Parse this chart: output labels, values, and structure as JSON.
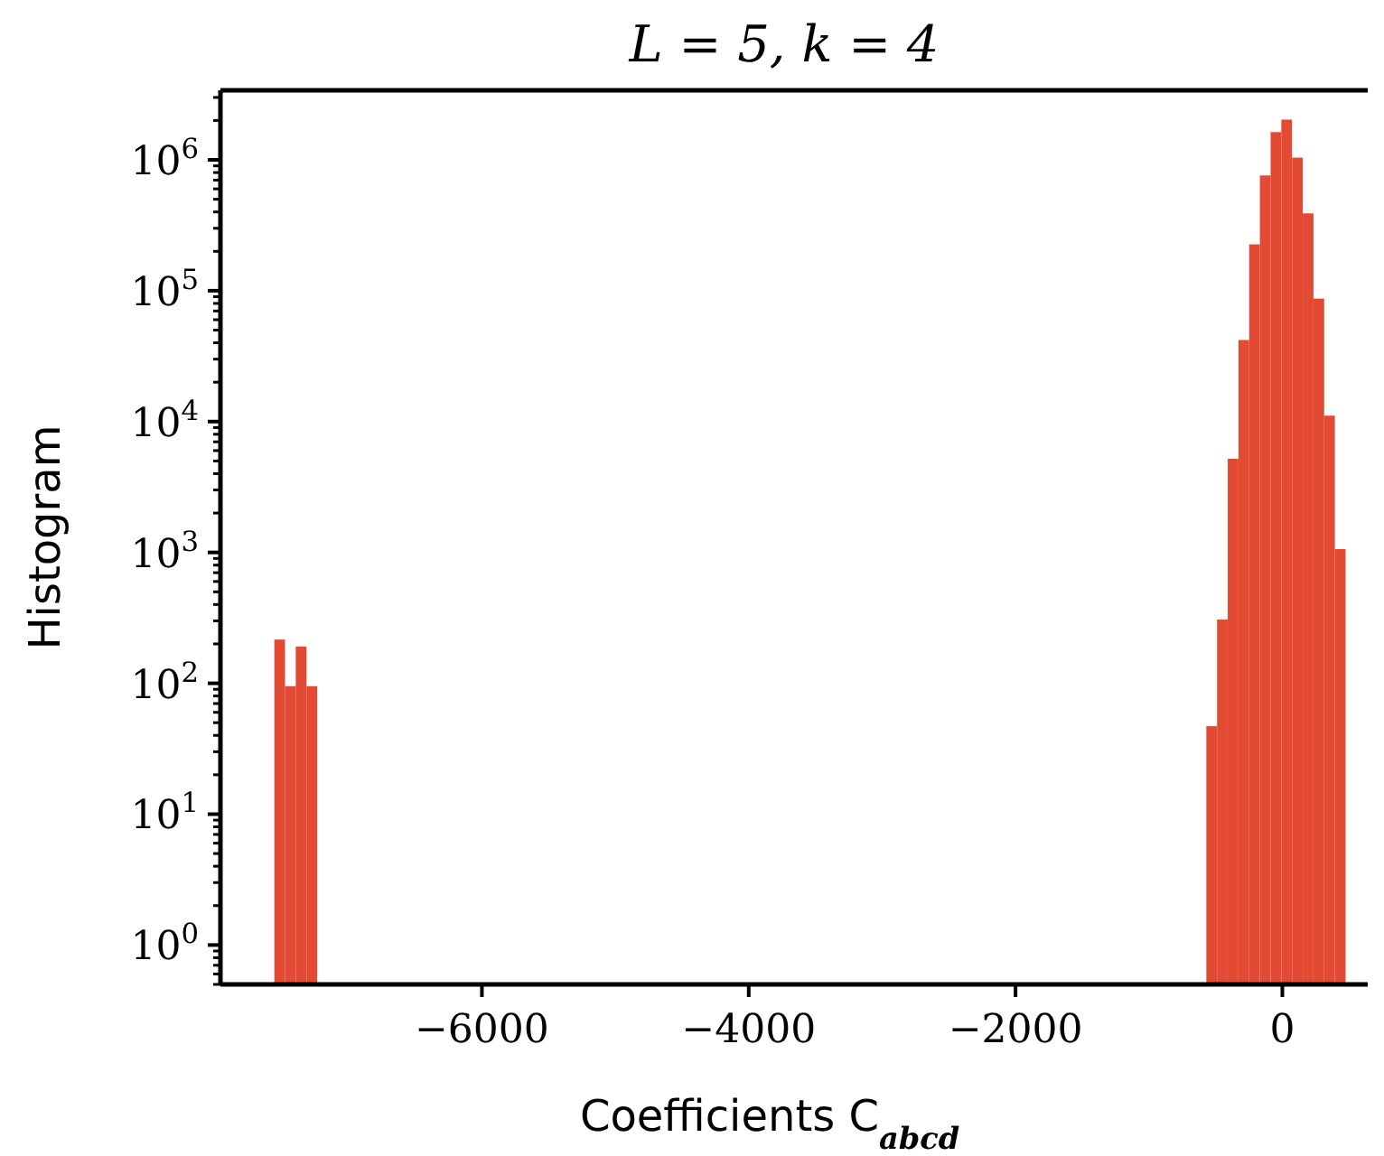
{
  "chart_data": {
    "type": "histogram",
    "title": "L = 5, k = 4",
    "xlabel": "Coefficients C$_{abcd}$",
    "ylabel": "Histogram",
    "color": "#e34a33",
    "log": "y",
    "grid": false,
    "bins": [
      -7556,
      -7475.7,
      -7395.4,
      -7315.1,
      -7234.8,
      -7154.5,
      -7074.2,
      -6993.9,
      -6913.6,
      -6833.3,
      -6753,
      -6672.7,
      -6592.4,
      -6512.1,
      -6431.8,
      -6351.5,
      -6271.2,
      -6190.9,
      -6110.6,
      -6030.3,
      -5950,
      -5869.7,
      -5789.4,
      -5709.1,
      -5628.8,
      -5548.5,
      -5468.2,
      -5387.9,
      -5307.6,
      -5227.3,
      -5147,
      -5066.7,
      -4986.4,
      -4906.1,
      -4825.8,
      -4745.5,
      -4665.2,
      -4584.9,
      -4504.6,
      -4424.3,
      -4344,
      -4263.7,
      -4183.4,
      -4103.1,
      -4022.8,
      -3942.5,
      -3862.2,
      -3781.9,
      -3701.6,
      -3621.3,
      -3541,
      -3460.7,
      -3380.4,
      -3300.1,
      -3219.8,
      -3139.5,
      -3059.2,
      -2978.9,
      -2898.6,
      -2818.3,
      -2738,
      -2657.7,
      -2577.4,
      -2497.1,
      -2416.8,
      -2336.5,
      -2256.2,
      -2175.9,
      -2095.6,
      -2015.3,
      -1935,
      -1854.7,
      -1774.4,
      -1694.1,
      -1613.8,
      -1533.5,
      -1453.2,
      -1372.9,
      -1292.6,
      -1212.3,
      -1132,
      -1051.7,
      -971.4,
      -891.1,
      -810.8,
      -730.5,
      -650.2,
      -569.9,
      -489.6,
      -409.3,
      -329,
      -248.7,
      -168.4,
      -88.1,
      -7.8,
      72.5,
      152.8,
      233.1,
      313.4,
      393.7,
      474
    ],
    "values": [
      216,
      95,
      191,
      95,
      null,
      null,
      null,
      null,
      null,
      null,
      null,
      null,
      null,
      null,
      null,
      null,
      null,
      null,
      null,
      null,
      null,
      null,
      null,
      null,
      null,
      null,
      null,
      null,
      null,
      null,
      null,
      null,
      null,
      null,
      null,
      null,
      null,
      null,
      null,
      null,
      null,
      null,
      null,
      null,
      null,
      null,
      null,
      null,
      null,
      null,
      null,
      null,
      null,
      null,
      null,
      null,
      null,
      null,
      null,
      null,
      null,
      null,
      null,
      null,
      null,
      null,
      null,
      null,
      null,
      null,
      null,
      null,
      null,
      null,
      null,
      null,
      null,
      null,
      null,
      null,
      null,
      null,
      null,
      null,
      null,
      null,
      null,
      47,
      307,
      5200,
      42000,
      226000,
      760000,
      1630000,
      2030000,
      1040000,
      390000,
      87000,
      11100,
      1060
    ],
    "xlim": [
      -7960,
      640
    ],
    "xticks": [
      {
        "value": -6000,
        "label": "−6000"
      },
      {
        "value": -4000,
        "label": "−4000"
      },
      {
        "value": -2000,
        "label": "−2000"
      },
      0
    ],
    "ylim": [
      0.5,
      3400000
    ],
    "yticks": [
      {
        "value": 0.5,
        "label": null
      },
      {
        "value": 0.6,
        "label": null
      },
      {
        "value": 0.7,
        "label": null
      },
      {
        "value": 0.8,
        "label": null
      },
      {
        "value": 0.9,
        "label": null
      },
      {
        "value": 1,
        "label": "10$^{0}$"
      },
      {
        "value": 2,
        "label": null
      },
      {
        "value": 3,
        "label": null
      },
      {
        "value": 4,
        "label": null
      },
      {
        "value": 5,
        "label": null
      },
      {
        "value": 6,
        "label": null
      },
      {
        "value": 7,
        "label": null
      },
      {
        "value": 8,
        "label": null
      },
      {
        "value": 9,
        "label": null
      },
      {
        "value": 10,
        "label": "10$^{1}$"
      },
      {
        "value": 20,
        "label": null
      },
      {
        "value": 30,
        "label": null
      },
      {
        "value": 40,
        "label": null
      },
      {
        "value": 50,
        "label": null
      },
      {
        "value": 60,
        "label": null
      },
      {
        "value": 70,
        "label": null
      },
      {
        "value": 80,
        "label": null
      },
      {
        "value": 90,
        "label": null
      },
      {
        "value": 100,
        "label": "10$^{2}$"
      },
      {
        "value": 200,
        "label": null
      },
      {
        "value": 300,
        "label": null
      },
      {
        "value": 400,
        "label": null
      },
      {
        "value": 500,
        "label": null
      },
      {
        "value": 600,
        "label": null
      },
      {
        "value": 700,
        "label": null
      },
      {
        "value": 800,
        "label": null
      },
      {
        "value": 900,
        "label": null
      },
      {
        "value": 1000,
        "label": "10$^{3}$"
      },
      {
        "value": 2000,
        "label": null
      },
      {
        "value": 3000,
        "label": null
      },
      {
        "value": 4000,
        "label": null
      },
      {
        "value": 5000,
        "label": null
      },
      {
        "value": 6000,
        "label": null
      },
      {
        "value": 7000,
        "label": null
      },
      {
        "value": 8000,
        "label": null
      },
      {
        "value": 9000,
        "label": null
      },
      {
        "value": 10000,
        "label": "10$^{4}$"
      },
      {
        "value": 20000,
        "label": null
      },
      {
        "value": 30000,
        "label": null
      },
      {
        "value": 40000,
        "label": null
      },
      {
        "value": 50000,
        "label": null
      },
      {
        "value": 60000,
        "label": null
      },
      {
        "value": 70000,
        "label": null
      },
      {
        "value": 80000,
        "label": null
      },
      {
        "value": 90000,
        "label": null
      },
      {
        "value": 100000,
        "label": "10$^{5}$"
      },
      {
        "value": 200000,
        "label": null
      },
      {
        "value": 300000,
        "label": null
      },
      {
        "value": 400000,
        "label": null
      },
      {
        "value": 500000,
        "label": null
      },
      {
        "value": 600000,
        "label": null
      },
      {
        "value": 700000,
        "label": null
      },
      {
        "value": 800000,
        "label": null
      },
      {
        "value": 900000,
        "label": null
      },
      {
        "value": 1000000,
        "label": "10$^{6}$"
      },
      {
        "value": 2000000,
        "label": null
      },
      {
        "value": 3000000,
        "label": null
      }
    ]
  }
}
